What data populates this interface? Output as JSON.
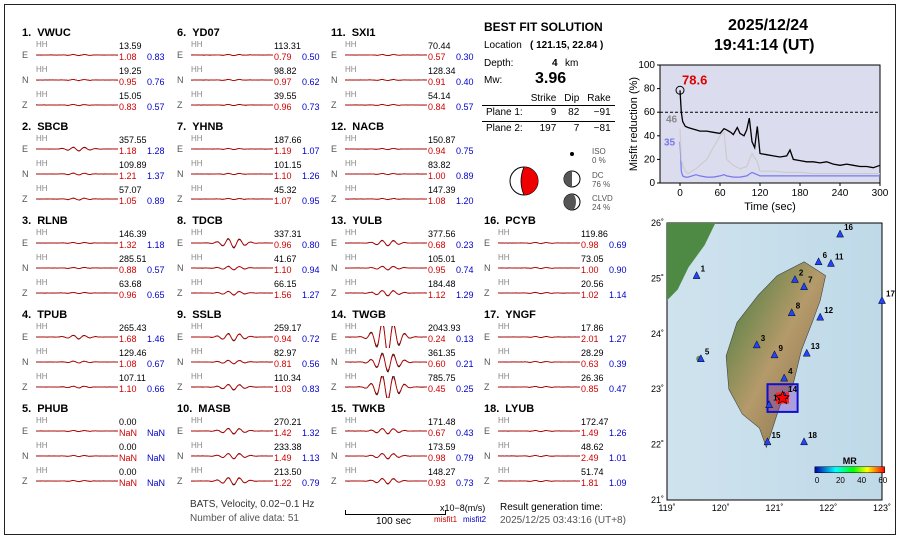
{
  "stations": [
    {
      "num": "1.",
      "name": "VWUC",
      "traces": [
        {
          "c": "E",
          "amp": "13.59",
          "m1": "1.08",
          "m2": "0.83"
        },
        {
          "c": "N",
          "amp": "19.25",
          "m1": "0.95",
          "m2": "0.76"
        },
        {
          "c": "Z",
          "amp": "15.05",
          "m1": "0.83",
          "m2": "0.57"
        }
      ]
    },
    {
      "num": "2.",
      "name": "SBCB",
      "traces": [
        {
          "c": "E",
          "amp": "357.55",
          "m1": "1.18",
          "m2": "1.28"
        },
        {
          "c": "N",
          "amp": "109.89",
          "m1": "1.21",
          "m2": "1.37"
        },
        {
          "c": "Z",
          "amp": "57.07",
          "m1": "1.05",
          "m2": "0.89"
        }
      ]
    },
    {
      "num": "3.",
      "name": "RLNB",
      "traces": [
        {
          "c": "E",
          "amp": "146.39",
          "m1": "1.32",
          "m2": "1.18"
        },
        {
          "c": "N",
          "amp": "285.51",
          "m1": "0.88",
          "m2": "0.57"
        },
        {
          "c": "Z",
          "amp": "63.68",
          "m1": "0.96",
          "m2": "0.65"
        }
      ]
    },
    {
      "num": "4.",
      "name": "TPUB",
      "traces": [
        {
          "c": "E",
          "amp": "265.43",
          "m1": "1.68",
          "m2": "1.46"
        },
        {
          "c": "N",
          "amp": "129.46",
          "m1": "1.08",
          "m2": "0.67"
        },
        {
          "c": "Z",
          "amp": "107.11",
          "m1": "1.10",
          "m2": "0.66"
        }
      ]
    },
    {
      "num": "5.",
      "name": "PHUB",
      "traces": [
        {
          "c": "E",
          "amp": "0.00",
          "m1": "NaN",
          "m2": "NaN"
        },
        {
          "c": "N",
          "amp": "0.00",
          "m1": "NaN",
          "m2": "NaN"
        },
        {
          "c": "Z",
          "amp": "0.00",
          "m1": "NaN",
          "m2": "NaN"
        }
      ]
    },
    {
      "num": "6.",
      "name": "YD07",
      "traces": [
        {
          "c": "E",
          "amp": "113.31",
          "m1": "0.79",
          "m2": "0.50"
        },
        {
          "c": "N",
          "amp": "98.82",
          "m1": "0.97",
          "m2": "0.62"
        },
        {
          "c": "Z",
          "amp": "39.55",
          "m1": "0.96",
          "m2": "0.73"
        }
      ]
    },
    {
      "num": "7.",
      "name": "YHNB",
      "traces": [
        {
          "c": "E",
          "amp": "187.66",
          "m1": "1.19",
          "m2": "1.07"
        },
        {
          "c": "N",
          "amp": "101.15",
          "m1": "1.10",
          "m2": "1.26"
        },
        {
          "c": "Z",
          "amp": "45.32",
          "m1": "1.07",
          "m2": "0.95"
        }
      ]
    },
    {
      "num": "8.",
      "name": "TDCB",
      "traces": [
        {
          "c": "E",
          "amp": "337.31",
          "m1": "0.96",
          "m2": "0.80"
        },
        {
          "c": "N",
          "amp": "41.67",
          "m1": "1.10",
          "m2": "0.94"
        },
        {
          "c": "Z",
          "amp": "66.15",
          "m1": "1.56",
          "m2": "1.27"
        }
      ]
    },
    {
      "num": "9.",
      "name": "SSLB",
      "traces": [
        {
          "c": "E",
          "amp": "259.17",
          "m1": "0.94",
          "m2": "0.72"
        },
        {
          "c": "N",
          "amp": "82.97",
          "m1": "0.81",
          "m2": "0.56"
        },
        {
          "c": "Z",
          "amp": "110.34",
          "m1": "1.03",
          "m2": "0.83"
        }
      ]
    },
    {
      "num": "10.",
      "name": "MASB",
      "traces": [
        {
          "c": "E",
          "amp": "270.21",
          "m1": "1.42",
          "m2": "1.32"
        },
        {
          "c": "N",
          "amp": "233.38",
          "m1": "1.49",
          "m2": "1.13"
        },
        {
          "c": "Z",
          "amp": "213.50",
          "m1": "1.22",
          "m2": "0.79"
        }
      ]
    },
    {
      "num": "11.",
      "name": "SXI1",
      "traces": [
        {
          "c": "E",
          "amp": "70.44",
          "m1": "0.57",
          "m2": "0.30"
        },
        {
          "c": "N",
          "amp": "128.34",
          "m1": "0.91",
          "m2": "0.40"
        },
        {
          "c": "Z",
          "amp": "54.14",
          "m1": "0.84",
          "m2": "0.57"
        }
      ]
    },
    {
      "num": "12.",
      "name": "NACB",
      "traces": [
        {
          "c": "E",
          "amp": "150.87",
          "m1": "0.94",
          "m2": "0.75"
        },
        {
          "c": "N",
          "amp": "83.82",
          "m1": "1.00",
          "m2": "0.89"
        },
        {
          "c": "Z",
          "amp": "147.39",
          "m1": "1.08",
          "m2": "1.20"
        }
      ]
    },
    {
      "num": "13.",
      "name": "YULB",
      "traces": [
        {
          "c": "E",
          "amp": "377.56",
          "m1": "0.68",
          "m2": "0.23"
        },
        {
          "c": "N",
          "amp": "105.01",
          "m1": "0.95",
          "m2": "0.74"
        },
        {
          "c": "Z",
          "amp": "184.48",
          "m1": "1.12",
          "m2": "1.29"
        }
      ]
    },
    {
      "num": "14.",
      "name": "TWGB",
      "traces": [
        {
          "c": "E",
          "amp": "2043.93",
          "m1": "0.24",
          "m2": "0.13"
        },
        {
          "c": "N",
          "amp": "361.35",
          "m1": "0.60",
          "m2": "0.21"
        },
        {
          "c": "Z",
          "amp": "785.75",
          "m1": "0.45",
          "m2": "0.25"
        }
      ]
    },
    {
      "num": "15.",
      "name": "TWKB",
      "traces": [
        {
          "c": "E",
          "amp": "171.48",
          "m1": "0.67",
          "m2": "0.43"
        },
        {
          "c": "N",
          "amp": "173.59",
          "m1": "0.98",
          "m2": "0.79"
        },
        {
          "c": "Z",
          "amp": "148.27",
          "m1": "0.93",
          "m2": "0.73"
        }
      ]
    },
    {
      "num": "16.",
      "name": "PCYB",
      "traces": [
        {
          "c": "E",
          "amp": "119.86",
          "m1": "0.98",
          "m2": "0.69"
        },
        {
          "c": "N",
          "amp": "73.05",
          "m1": "1.00",
          "m2": "0.90"
        },
        {
          "c": "Z",
          "amp": "20.56",
          "m1": "1.02",
          "m2": "1.14"
        }
      ]
    },
    {
      "num": "17.",
      "name": "YNGF",
      "traces": [
        {
          "c": "E",
          "amp": "17.86",
          "m1": "2.01",
          "m2": "1.27"
        },
        {
          "c": "N",
          "amp": "28.29",
          "m1": "0.63",
          "m2": "0.39"
        },
        {
          "c": "Z",
          "amp": "26.36",
          "m1": "0.85",
          "m2": "0.47"
        }
      ]
    },
    {
      "num": "18.",
      "name": "LYUB",
      "traces": [
        {
          "c": "E",
          "amp": "172.47",
          "m1": "1.49",
          "m2": "1.26"
        },
        {
          "c": "N",
          "amp": "48.62",
          "m1": "2.49",
          "m2": "1.01"
        },
        {
          "c": "Z",
          "amp": "51.74",
          "m1": "1.81",
          "m2": "1.09"
        }
      ]
    }
  ],
  "trace_channel": "HH",
  "solution": {
    "title": "BEST FIT SOLUTION",
    "location_label": "Location",
    "location_value": "( 121.15,  22.84 )",
    "depth_label": "Depth:",
    "depth_value": "4",
    "depth_unit": "km",
    "mw_label": "Mw:",
    "mw_value": "3.96",
    "col_strike": "Strike",
    "col_dip": "Dip",
    "col_rake": "Rake",
    "plane1_label": "Plane 1:",
    "plane1": [
      "9",
      "82",
      "−91"
    ],
    "plane2_label": "Plane 2:",
    "plane2": [
      "197",
      "7",
      "−81"
    ],
    "iso_label": "ISO",
    "iso_value": "0 %",
    "dc_label": "DC",
    "dc_value": "76 %",
    "clvd_label": "CLVD",
    "clvd_value": "24 %"
  },
  "header": {
    "date": "2025/12/24",
    "time": "19:41:14  (UT)"
  },
  "misfit_chart": {
    "peak_label": "78.6",
    "label_46": "46",
    "label_35": "35",
    "ylabel": "Misfit reduction (%)",
    "xlabel": "Time (sec)",
    "xticks": [
      "0",
      "60",
      "120",
      "180",
      "240",
      "300"
    ],
    "yticks": [
      "0",
      "20",
      "40",
      "60",
      "80",
      "100"
    ]
  },
  "chart_data": {
    "type": "line",
    "xlabel": "Time (sec)",
    "ylabel": "Misfit reduction (%)",
    "xlim": [
      -30,
      300
    ],
    "ylim": [
      0,
      100
    ],
    "hline": 60,
    "series": [
      {
        "color": "#000000",
        "x": [
          0,
          2,
          4,
          8,
          12,
          18,
          24,
          30,
          40,
          50,
          60,
          66,
          70,
          76,
          80,
          86,
          90,
          96,
          100,
          104,
          108,
          112,
          116,
          120,
          130,
          140,
          150,
          160,
          165,
          170,
          180,
          190,
          200,
          210,
          220,
          230,
          240,
          250,
          260,
          270,
          280,
          290,
          300
        ],
        "y": [
          78.6,
          60,
          52,
          48,
          47,
          46,
          45,
          44,
          44,
          43,
          42,
          46,
          45,
          43,
          41,
          47,
          42,
          40,
          45,
          55,
          35,
          30,
          48,
          25,
          24,
          23,
          22,
          23,
          28,
          20,
          19,
          18,
          18,
          17,
          18,
          16,
          15,
          16,
          15,
          14,
          14,
          13,
          15
        ]
      },
      {
        "color": "#cccccc",
        "x": [
          0,
          2,
          4,
          8,
          12,
          18,
          24,
          30,
          40,
          50,
          60,
          66,
          70,
          80,
          90,
          100,
          108,
          116,
          120,
          140,
          160,
          180,
          200,
          220,
          240,
          260,
          280,
          300
        ],
        "y": [
          46,
          20,
          15,
          10,
          8,
          10,
          12,
          15,
          20,
          30,
          40,
          43,
          20,
          15,
          12,
          14,
          25,
          18,
          10,
          10,
          9,
          9,
          8,
          8,
          8,
          8,
          8,
          8
        ]
      },
      {
        "color": "#7777ee",
        "x": [
          0,
          2,
          4,
          8,
          12,
          18,
          24,
          30,
          40,
          50,
          60,
          66,
          70,
          80,
          90,
          100,
          108,
          116,
          120,
          140,
          160,
          180,
          200,
          220,
          240,
          260,
          280,
          300
        ],
        "y": [
          35,
          10,
          6,
          5,
          5,
          6,
          7,
          6,
          5,
          5,
          6,
          7,
          6,
          5,
          5,
          6,
          9,
          7,
          6,
          6,
          6,
          6,
          6,
          6,
          6,
          6,
          6,
          6
        ]
      }
    ]
  },
  "map": {
    "lat_ticks": [
      "26˚",
      "25˚",
      "24˚",
      "23˚",
      "22˚",
      "21˚"
    ],
    "lon_ticks": [
      "119˚",
      "120˚",
      "121˚",
      "122˚",
      "123˚"
    ],
    "station_markers": [
      {
        "n": "1",
        "lon": 119.55,
        "lat": 25.05
      },
      {
        "n": "2",
        "lon": 121.38,
        "lat": 24.98
      },
      {
        "n": "3",
        "lon": 120.67,
        "lat": 23.8
      },
      {
        "n": "4",
        "lon": 121.18,
        "lat": 23.2
      },
      {
        "n": "5",
        "lon": 119.63,
        "lat": 23.55
      },
      {
        "n": "6",
        "lon": 121.82,
        "lat": 25.3
      },
      {
        "n": "7",
        "lon": 121.55,
        "lat": 24.85
      },
      {
        "n": "8",
        "lon": 121.32,
        "lat": 24.38
      },
      {
        "n": "9",
        "lon": 121.0,
        "lat": 23.62
      },
      {
        "n": "10",
        "lon": 120.9,
        "lat": 22.72
      },
      {
        "n": "11",
        "lon": 122.05,
        "lat": 25.27
      },
      {
        "n": "12",
        "lon": 121.85,
        "lat": 24.3
      },
      {
        "n": "13",
        "lon": 121.6,
        "lat": 23.65
      },
      {
        "n": "14",
        "lon": 121.18,
        "lat": 22.88
      },
      {
        "n": "15",
        "lon": 120.87,
        "lat": 22.05
      },
      {
        "n": "16",
        "lon": 122.22,
        "lat": 25.8
      },
      {
        "n": "17",
        "lon": 123.0,
        "lat": 24.6
      },
      {
        "n": "18",
        "lon": 121.55,
        "lat": 22.05
      }
    ],
    "epicenter": {
      "lon": 121.15,
      "lat": 22.84
    },
    "colorbar_title": "MR",
    "colorbar_ticks": [
      "0",
      "20",
      "40",
      "60"
    ]
  },
  "footer": {
    "line1": "BATS, Velocity, 0.02~0.1 Hz",
    "line2": "Number of alive data: 51",
    "scale": "100 sec",
    "units": "x10−8(m/s)",
    "misfit1": "misfit1",
    "misfit2": "misfit2",
    "result_label": "Result generation time:",
    "result_time": "2025/12/25 03:43:16 (UT+8)"
  },
  "colors": {
    "synthetic": "#d00000",
    "observed": "#000000",
    "misfit1": "#d00000",
    "misfit2": "#0000cc"
  }
}
